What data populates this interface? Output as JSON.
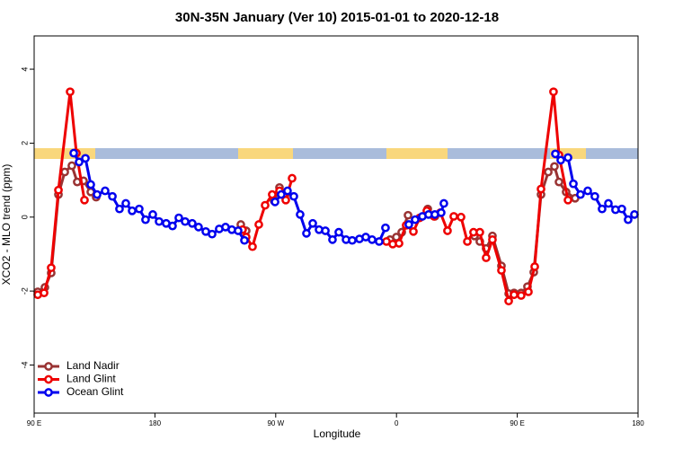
{
  "chart_data": {
    "type": "line",
    "title": "30N-35N January (Ver 10)   2015-01-01 to 2020-12-18",
    "x_label": "Longitude",
    "y_label": "XCO2 - MLO trend (ppm)",
    "xlim": [
      90,
      540
    ],
    "ylim": [
      -5.3,
      4.9
    ],
    "xticks": [
      {
        "value": 90,
        "label": "90 E"
      },
      {
        "value": 180,
        "label": "180"
      },
      {
        "value": 270,
        "label": "90 W"
      },
      {
        "value": 360,
        "label": "0"
      },
      {
        "value": 450,
        "label": "90 E"
      },
      {
        "value": 540,
        "label": "180"
      }
    ],
    "yticks": [
      -4,
      -2,
      0,
      2,
      4
    ],
    "legend": "bottomleft",
    "series": [
      {
        "name": "Land Nadir",
        "color": "#993333",
        "x": [
          92.7,
          98.0,
          102.7,
          108.1,
          112.8,
          118.1,
          122.1,
          126.8,
          132.2,
          136.2,
          null,
          244.0,
          248.0,
          null,
          268.8,
          272.8,
          277.5,
          null,
          355.2,
          359.9,
          363.9,
          368.6,
          null,
          383.3,
          388.6,
          null,
          418.1,
          422.1,
          426.8,
          431.5,
          438.2,
          443.6,
          447.6,
          452.9,
          457.6,
          462.3,
          467.7,
          473.1,
          477.7,
          481.1,
          486.4,
          493.1
        ],
        "values": [
          -2.02,
          -1.9,
          -1.51,
          0.61,
          1.22,
          1.39,
          0.95,
          0.98,
          0.68,
          0.54,
          null,
          -0.2,
          -0.37,
          null,
          0.44,
          0.8,
          0.63,
          null,
          -0.61,
          -0.54,
          -0.41,
          0.05,
          null,
          0.22,
          0.02,
          null,
          -0.51,
          -0.66,
          -0.85,
          -0.51,
          -1.32,
          -2.07,
          -2.05,
          -2.05,
          -1.88,
          -1.49,
          0.61,
          1.22,
          1.37,
          0.95,
          0.68,
          0.51
        ]
      },
      {
        "name": "Land Glint",
        "color": "#ee0000",
        "x": [
          92.7,
          97.4,
          102.7,
          108.1,
          116.8,
          121.5,
          127.5,
          null,
          245.3,
          248.0,
          252.7,
          257.4,
          262.1,
          267.4,
          272.8,
          277.5,
          282.2,
          null,
          352.5,
          357.2,
          361.9,
          367.2,
          372.6,
          377.3,
          382.6,
          388.0,
          392.7,
          398.0,
          402.7,
          408.1,
          412.8,
          417.4,
          422.1,
          426.8,
          431.5,
          438.2,
          443.6,
          447.6,
          452.9,
          458.3,
          463.0,
          467.7,
          477.0,
          481.1,
          487.8
        ],
        "values": [
          -2.1,
          -2.05,
          -1.37,
          0.73,
          3.39,
          1.73,
          0.46,
          null,
          -0.34,
          -0.54,
          -0.8,
          -0.2,
          0.32,
          0.61,
          0.71,
          0.46,
          1.05,
          null,
          -0.66,
          -0.73,
          -0.71,
          -0.22,
          -0.39,
          -0.02,
          0.17,
          0.02,
          0.12,
          -0.37,
          0.02,
          0.0,
          -0.66,
          -0.41,
          -0.41,
          -1.1,
          -0.61,
          -1.44,
          -2.27,
          -2.1,
          -2.12,
          -2.02,
          -1.34,
          0.76,
          3.39,
          1.68,
          0.46
        ]
      },
      {
        "name": "Ocean Glint",
        "color": "#0000ee",
        "x": [
          119.5,
          123.5,
          128.2,
          132.2,
          136.9,
          142.9,
          148.3,
          153.6,
          158.3,
          163.0,
          168.3,
          173.0,
          178.4,
          183.1,
          188.4,
          193.1,
          197.8,
          202.5,
          207.8,
          212.5,
          217.9,
          222.6,
          227.9,
          232.6,
          237.3,
          242.0,
          246.7,
          null,
          269.5,
          274.1,
          278.8,
          283.5,
          288.2,
          292.9,
          297.6,
          302.3,
          307.0,
          312.3,
          317.0,
          322.4,
          327.0,
          332.4,
          337.1,
          341.8,
          347.1,
          351.8,
          null,
          369.2,
          373.9,
          379.3,
          383.9,
          388.6,
          393.3,
          395.3,
          null,
          478.4,
          482.4,
          487.8,
          491.8,
          497.1,
          502.5,
          507.8,
          513.2,
          517.9,
          523.2,
          527.9,
          532.6,
          537.3
        ],
        "values": [
          1.73,
          1.49,
          1.59,
          0.88,
          0.61,
          0.71,
          0.56,
          0.22,
          0.37,
          0.17,
          0.22,
          -0.07,
          0.07,
          -0.12,
          -0.17,
          -0.24,
          -0.02,
          -0.12,
          -0.17,
          -0.27,
          -0.39,
          -0.46,
          -0.32,
          -0.27,
          -0.34,
          -0.37,
          -0.63,
          null,
          0.41,
          0.61,
          0.71,
          0.56,
          0.07,
          -0.44,
          -0.17,
          -0.34,
          -0.37,
          -0.61,
          -0.41,
          -0.61,
          -0.63,
          -0.59,
          -0.54,
          -0.61,
          -0.66,
          -0.29,
          null,
          -0.2,
          -0.07,
          0.02,
          0.07,
          0.07,
          0.12,
          0.37,
          null,
          1.71,
          1.54,
          1.61,
          0.9,
          0.61,
          0.71,
          0.56,
          0.22,
          0.37,
          0.2,
          0.22,
          -0.07,
          0.07
        ]
      }
    ]
  }
}
